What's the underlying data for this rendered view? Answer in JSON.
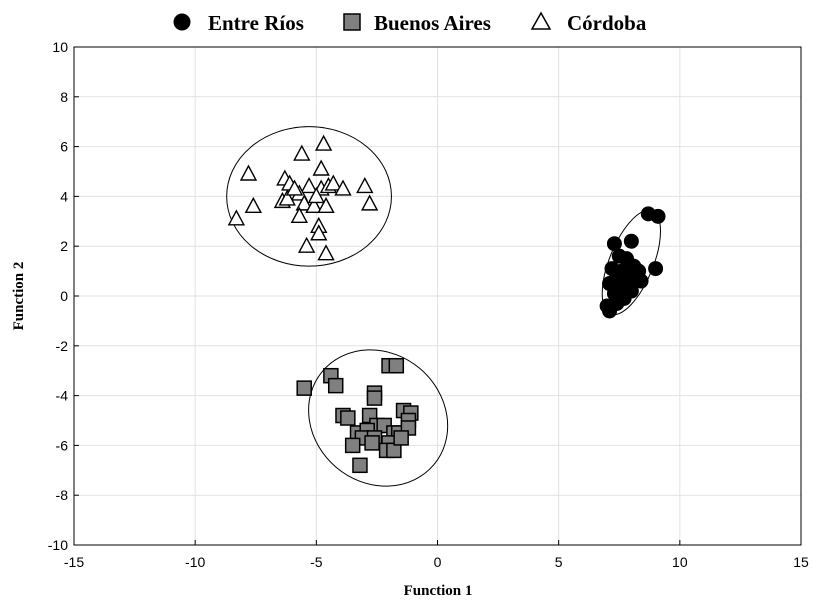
{
  "chart_data": {
    "type": "scatter",
    "xlabel": "Function 1",
    "ylabel": "Function 2",
    "xlim": [
      -15,
      15
    ],
    "ylim": [
      -10,
      10
    ],
    "xticks": [
      -15,
      -10,
      -5,
      0,
      5,
      10,
      15
    ],
    "yticks": [
      -10,
      -8,
      -6,
      -4,
      -2,
      0,
      2,
      4,
      6,
      8,
      10
    ],
    "grid": true,
    "legend_position": "top-center",
    "series": [
      {
        "name": "Entre Ríos",
        "marker": "circle",
        "color": "#000000",
        "points": [
          [
            7.3,
            2.1
          ],
          [
            8.0,
            2.2
          ],
          [
            8.7,
            3.3
          ],
          [
            9.1,
            3.2
          ],
          [
            7.5,
            1.6
          ],
          [
            7.8,
            1.5
          ],
          [
            7.2,
            1.1
          ],
          [
            7.6,
            1.0
          ],
          [
            8.1,
            1.2
          ],
          [
            8.3,
            1.0
          ],
          [
            9.0,
            1.1
          ],
          [
            7.4,
            0.8
          ],
          [
            7.9,
            0.7
          ],
          [
            8.4,
            0.6
          ],
          [
            7.1,
            0.5
          ],
          [
            7.6,
            0.3
          ],
          [
            8.0,
            0.2
          ],
          [
            7.3,
            0.1
          ],
          [
            7.7,
            -0.1
          ],
          [
            7.4,
            -0.3
          ],
          [
            7.0,
            -0.4
          ],
          [
            7.1,
            -0.6
          ],
          [
            7.8,
            0.9
          ],
          [
            7.5,
            0.6
          ]
        ]
      },
      {
        "name": "Buenos Aires",
        "marker": "square",
        "color": "#808080",
        "points": [
          [
            -5.5,
            -3.7
          ],
          [
            -4.4,
            -3.2
          ],
          [
            -4.2,
            -3.6
          ],
          [
            -2.0,
            -2.8
          ],
          [
            -1.7,
            -2.8
          ],
          [
            -2.6,
            -3.9
          ],
          [
            -2.6,
            -4.1
          ],
          [
            -3.9,
            -4.8
          ],
          [
            -3.7,
            -4.9
          ],
          [
            -2.8,
            -4.8
          ],
          [
            -1.4,
            -4.6
          ],
          [
            -1.1,
            -4.7
          ],
          [
            -2.5,
            -5.2
          ],
          [
            -2.2,
            -5.2
          ],
          [
            -1.2,
            -5.0
          ],
          [
            -3.3,
            -5.5
          ],
          [
            -2.9,
            -5.4
          ],
          [
            -1.8,
            -5.5
          ],
          [
            -3.1,
            -5.7
          ],
          [
            -2.6,
            -5.7
          ],
          [
            -1.6,
            -5.5
          ],
          [
            -1.2,
            -5.3
          ],
          [
            -3.5,
            -6.0
          ],
          [
            -2.0,
            -5.9
          ],
          [
            -2.1,
            -6.2
          ],
          [
            -1.8,
            -6.2
          ],
          [
            -3.2,
            -6.8
          ],
          [
            -2.7,
            -5.9
          ],
          [
            -1.5,
            -5.7
          ]
        ]
      },
      {
        "name": "Córdoba",
        "marker": "triangle",
        "color": "#ffffff",
        "points": [
          [
            -4.7,
            6.1
          ],
          [
            -5.6,
            5.7
          ],
          [
            -4.8,
            5.1
          ],
          [
            -7.8,
            4.9
          ],
          [
            -6.3,
            4.7
          ],
          [
            -6.1,
            4.5
          ],
          [
            -5.3,
            4.4
          ],
          [
            -4.8,
            4.3
          ],
          [
            -4.5,
            4.4
          ],
          [
            -5.7,
            4.1
          ],
          [
            -4.3,
            4.5
          ],
          [
            -3.9,
            4.3
          ],
          [
            -3.0,
            4.4
          ],
          [
            -6.4,
            3.8
          ],
          [
            -6.2,
            3.9
          ],
          [
            -5.5,
            3.7
          ],
          [
            -5.1,
            3.6
          ],
          [
            -4.6,
            3.6
          ],
          [
            -7.6,
            3.6
          ],
          [
            -2.8,
            3.7
          ],
          [
            -8.3,
            3.1
          ],
          [
            -5.7,
            3.2
          ],
          [
            -4.9,
            2.8
          ],
          [
            -4.9,
            2.5
          ],
          [
            -5.4,
            2.0
          ],
          [
            -4.6,
            1.7
          ],
          [
            -5.9,
            4.3
          ],
          [
            -5.0,
            4.0
          ]
        ]
      }
    ],
    "ellipses": [
      {
        "series": "Entre Ríos",
        "cx": 8.0,
        "cy": 1.35,
        "rx": 2.3,
        "ry": 0.88,
        "angle_deg": 68
      },
      {
        "series": "Buenos Aires",
        "cx": -2.45,
        "cy": -4.9,
        "rx": 3.0,
        "ry": 2.6,
        "angle_deg": -40
      },
      {
        "series": "Córdoba",
        "cx": -5.3,
        "cy": 4.0,
        "rx": 3.4,
        "ry": 2.8,
        "angle_deg": 0
      }
    ]
  }
}
